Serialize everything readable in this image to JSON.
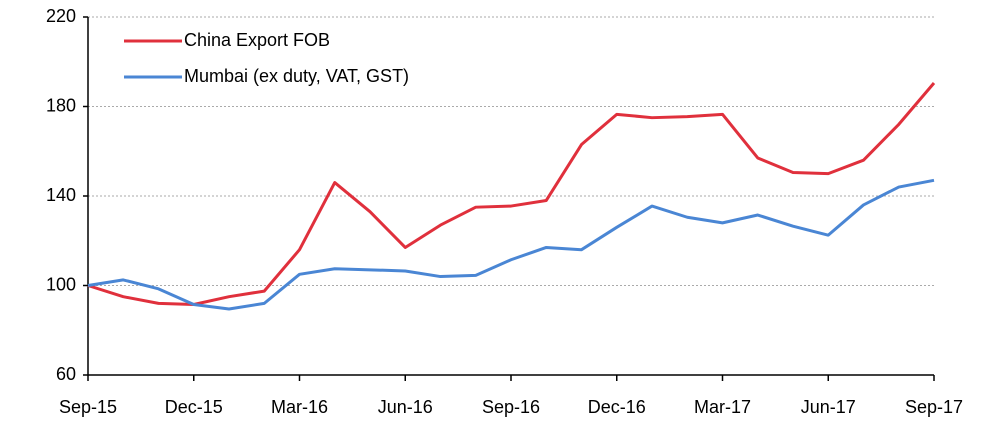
{
  "chart_data": {
    "type": "line",
    "categories": [
      "Sep-15",
      null,
      null,
      "Dec-15",
      null,
      null,
      "Mar-16",
      null,
      null,
      "Jun-16",
      null,
      null,
      "Sep-16",
      null,
      null,
      "Dec-16",
      null,
      null,
      "Mar-17",
      null,
      null,
      "Jun-17",
      null,
      null,
      "Sep-17"
    ],
    "series": [
      {
        "name": "China Export FOB",
        "color": "#e0303c",
        "values": [
          100,
          95,
          92,
          91.5,
          95,
          97.5,
          116,
          146,
          133,
          117,
          127,
          135,
          135.5,
          138,
          163,
          176.5,
          175,
          175.5,
          176.5,
          157,
          150.5,
          150,
          156,
          172,
          190.5
        ]
      },
      {
        "name": "Mumbai (ex duty, VAT, GST)",
        "color": "#4a86d4",
        "values": [
          100,
          102.5,
          98.5,
          91.5,
          89.5,
          92,
          105,
          107.5,
          107,
          106.5,
          104,
          104.5,
          111.5,
          117,
          116,
          126,
          135.5,
          130.5,
          128,
          131.5,
          126.5,
          122.5,
          136,
          144,
          147
        ]
      }
    ],
    "ylim": [
      60,
      220
    ],
    "yticks": [
      60,
      100,
      140,
      180,
      220
    ],
    "grid": true,
    "legend": "upper left"
  }
}
